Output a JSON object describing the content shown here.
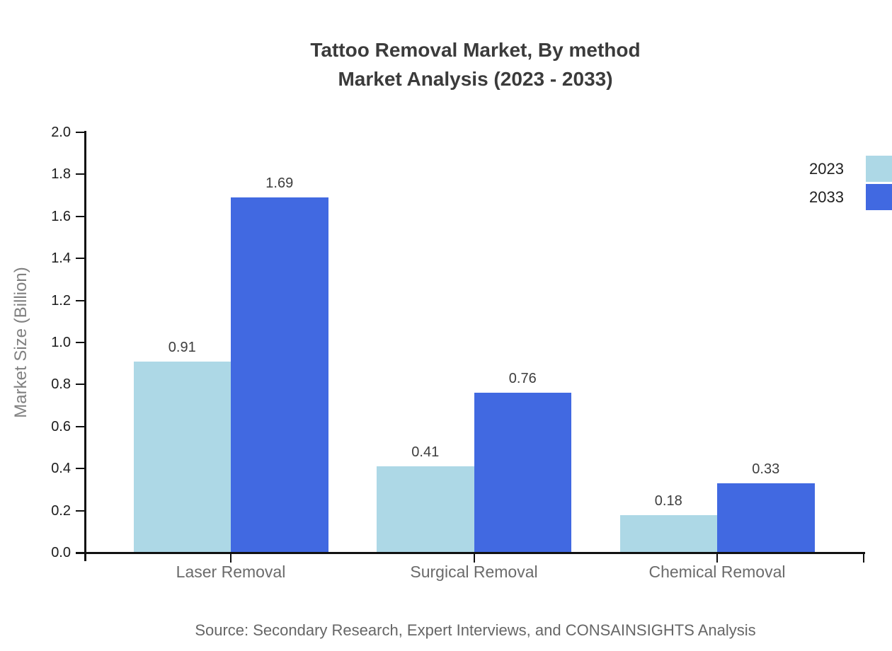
{
  "title": {
    "line1": "Tattoo Removal Market, By method",
    "line2": "Market Analysis (2023 - 2033)"
  },
  "source": "Source: Secondary Research, Expert Interviews, and CONSAINSIGHTS Analysis",
  "chart_data": {
    "type": "bar",
    "title": "Tattoo Removal Market, By method — Market Analysis (2023 - 2033)",
    "categories": [
      "Laser Removal",
      "Surgical Removal",
      "Chemical Removal"
    ],
    "series": [
      {
        "name": "2023",
        "color": "#ADD8E6",
        "values": [
          0.91,
          0.41,
          0.18
        ],
        "labels": [
          "0.91",
          "0.41",
          "0.18"
        ]
      },
      {
        "name": "2033",
        "color": "#4169E1",
        "values": [
          1.69,
          0.76,
          0.33
        ],
        "labels": [
          "1.69",
          "0.76",
          "0.33"
        ]
      }
    ],
    "xlabel": "",
    "ylabel": "Market Size (Billion)",
    "ylim": [
      0.0,
      2.0
    ],
    "yticks": [
      "0.0",
      "0.2",
      "0.4",
      "0.6",
      "0.8",
      "1.0",
      "1.2",
      "1.4",
      "1.6",
      "1.8",
      "2.0"
    ],
    "grid": false,
    "legend_position": "top-right"
  }
}
